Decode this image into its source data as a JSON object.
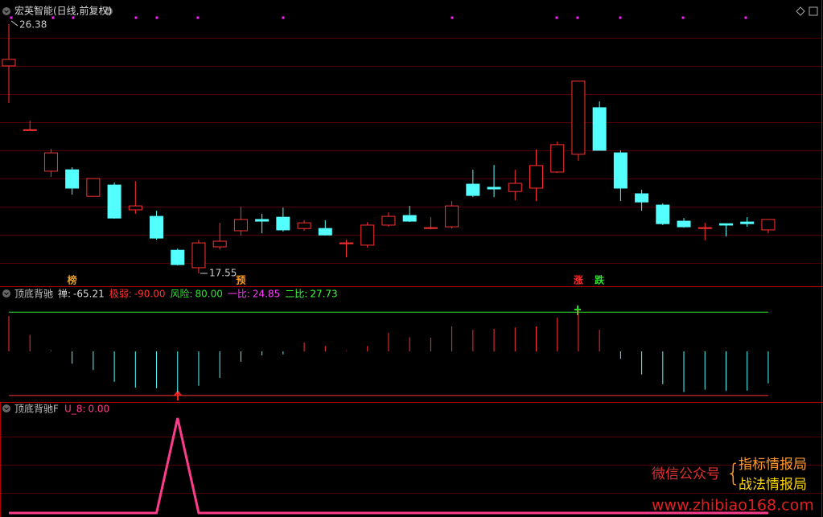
{
  "chart_data": [
    {
      "type": "candlestick",
      "title": "宏英智能(日线,前复权)",
      "open": [
        24.9,
        22.62,
        21.17,
        21.22,
        20.28,
        20.68,
        19.8,
        19.57,
        18.37,
        17.75,
        18.49,
        19.06,
        19.46,
        19.54,
        19.14,
        19.14,
        18.6,
        18.55,
        19.26,
        19.6,
        19.14,
        19.2,
        20.71,
        20.6,
        20.45,
        20.57,
        21.14,
        21.77,
        23.42,
        21.82,
        20.37,
        19.97,
        19.4,
        19.14,
        19.31,
        19.37,
        19.09
      ],
      "high": [
        26.38,
        22.96,
        21.96,
        21.31,
        20.91,
        20.77,
        20.82,
        19.77,
        18.43,
        18.74,
        19.34,
        19.91,
        19.66,
        19.88,
        19.43,
        19.43,
        18.74,
        19.37,
        19.71,
        19.94,
        19.54,
        20.11,
        21.22,
        21.39,
        21.22,
        21.94,
        22.22,
        24.36,
        23.64,
        21.91,
        20.51,
        20.03,
        19.51,
        19.34,
        19.31,
        19.54,
        19.46
      ],
      "low": [
        23.59,
        22.62,
        20.97,
        20.34,
        20.28,
        19.49,
        19.66,
        18.74,
        17.83,
        17.55,
        18.4,
        18.89,
        18.97,
        19.03,
        19.06,
        18.89,
        18.12,
        18.46,
        19.2,
        19.37,
        19.11,
        19.14,
        20.25,
        20.25,
        20.14,
        20.11,
        21.11,
        21.54,
        21.91,
        20.11,
        19.77,
        19.26,
        19.17,
        18.72,
        18.86,
        19.2,
        18.97
      ],
      "close": [
        25.13,
        22.64,
        21.82,
        20.57,
        20.91,
        19.51,
        19.94,
        18.8,
        17.86,
        18.63,
        18.69,
        19.46,
        19.4,
        19.09,
        19.34,
        18.91,
        18.63,
        19.26,
        19.57,
        19.4,
        19.17,
        19.94,
        20.31,
        20.54,
        20.74,
        21.37,
        22.11,
        24.36,
        21.91,
        20.57,
        20.08,
        19.31,
        19.2,
        19.17,
        19.26,
        19.31,
        19.46
      ],
      "up_color": "#ff3232",
      "down_color": "#54ffff",
      "ylim": [
        17.55,
        26.38
      ],
      "max_label": 26.38,
      "min_label": 17.55,
      "markers": [
        {
          "index": 3,
          "text": "榜",
          "color": "#e0a030"
        },
        {
          "index": 11,
          "text": "预",
          "color": "#ff9a20"
        },
        {
          "index": 27,
          "text": "涨",
          "color": "#ff3030"
        },
        {
          "index": 28,
          "text": "跌",
          "color": "#30e030"
        }
      ]
    },
    {
      "type": "bar",
      "title": "顶底背驰",
      "values": [
        72,
        34,
        2,
        -25,
        -38,
        -62,
        -74,
        -75,
        -84,
        -70,
        -54,
        -21,
        -8,
        -6,
        18,
        11,
        1,
        11,
        38,
        29,
        28,
        51,
        44,
        46,
        49,
        51,
        69,
        85,
        44,
        -15,
        -47,
        -67,
        -83,
        -78,
        -80,
        -80,
        -65.21
      ],
      "up_color": "#ff3232",
      "down_color": "#54ffff",
      "ylim": [
        -100,
        110
      ],
      "stats": [
        {
          "name": "禅:",
          "value": -65.21,
          "color": "#dddddd"
        },
        {
          "name": "极弱:",
          "value": {
            "value": -90,
            "label": "-90.00"
          },
          "color": "#ff3232",
          "line": true
        },
        {
          "name": "风险:",
          "value": {
            "value": 80,
            "label": "80.00"
          },
          "color": "#32e032",
          "line": true
        },
        {
          "name": "一比:",
          "value": 24.85,
          "color": "#ff40ff"
        },
        {
          "name": "二比:",
          "value": 27.73,
          "color": "#40ff40"
        }
      ]
    },
    {
      "type": "line",
      "title": "顶底背驰F",
      "series": [
        {
          "name": "U_8:",
          "color": "#ff3c8c",
          "values": [
            0,
            0,
            0,
            0,
            0,
            0,
            0,
            0,
            1,
            0,
            0,
            0,
            0,
            0,
            0,
            0,
            0,
            0,
            0,
            0,
            0,
            0,
            0,
            0,
            0,
            0,
            0,
            0,
            0,
            0,
            0,
            0,
            0,
            0,
            0,
            0,
            0
          ],
          "current": {
            "value": 0,
            "label": "0.00"
          }
        }
      ],
      "ylim": [
        0,
        1
      ]
    }
  ],
  "watermark": {
    "prefix": "微信公众号",
    "lines": [
      "指标情报局",
      "战法情报局"
    ],
    "url": "www.zhibiao168.com"
  }
}
